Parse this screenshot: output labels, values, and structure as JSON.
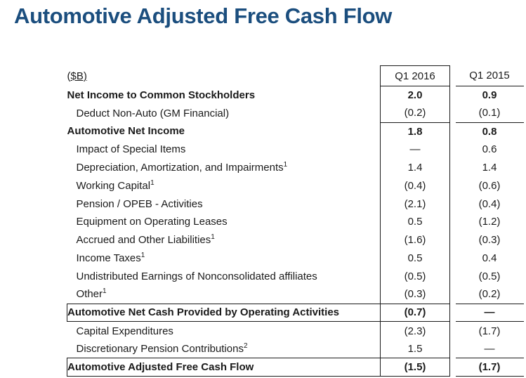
{
  "title": "Automotive Adjusted Free Cash Flow",
  "colors": {
    "title_blue": "#1B4E7E",
    "text": "#1a1a1a",
    "border": "#1a1a1a",
    "background": "#ffffff"
  },
  "chart_data": {
    "type": "table",
    "title": "Automotive Adjusted Free Cash Flow",
    "units": "($B)",
    "columns": [
      "Q1 2016",
      "Q1 2015"
    ],
    "rows": [
      {
        "label": "Net Income to Common Stockholders",
        "sup": "",
        "q1_2016": "2.0",
        "q1_2015": "0.9",
        "bold": true,
        "indent": false,
        "sep_below": false,
        "boxed": false
      },
      {
        "label": "Deduct Non-Auto (GM Financial)",
        "sup": "",
        "q1_2016": "(0.2)",
        "q1_2015": "(0.1)",
        "bold": false,
        "indent": true,
        "sep_below": true,
        "boxed": false
      },
      {
        "label": "Automotive Net Income",
        "sup": "",
        "q1_2016": "1.8",
        "q1_2015": "0.8",
        "bold": true,
        "indent": false,
        "sep_below": false,
        "boxed": false
      },
      {
        "label": "Impact of Special Items",
        "sup": "",
        "q1_2016": "—",
        "q1_2015": "0.6",
        "bold": false,
        "indent": true,
        "sep_below": false,
        "boxed": false
      },
      {
        "label": "Depreciation, Amortization, and Impairments",
        "sup": "1",
        "q1_2016": "1.4",
        "q1_2015": "1.4",
        "bold": false,
        "indent": true,
        "sep_below": false,
        "boxed": false
      },
      {
        "label": "Working Capital",
        "sup": "1",
        "q1_2016": "(0.4)",
        "q1_2015": "(0.6)",
        "bold": false,
        "indent": true,
        "sep_below": false,
        "boxed": false
      },
      {
        "label": "Pension / OPEB - Activities",
        "sup": "",
        "q1_2016": "(2.1)",
        "q1_2015": "(0.4)",
        "bold": false,
        "indent": true,
        "sep_below": false,
        "boxed": false
      },
      {
        "label": "Equipment on Operating Leases",
        "sup": "",
        "q1_2016": "0.5",
        "q1_2015": "(1.2)",
        "bold": false,
        "indent": true,
        "sep_below": false,
        "boxed": false
      },
      {
        "label": "Accrued and Other Liabilities",
        "sup": "1",
        "q1_2016": "(1.6)",
        "q1_2015": "(0.3)",
        "bold": false,
        "indent": true,
        "sep_below": false,
        "boxed": false
      },
      {
        "label": "Income Taxes",
        "sup": "1",
        "q1_2016": "0.5",
        "q1_2015": "0.4",
        "bold": false,
        "indent": true,
        "sep_below": false,
        "boxed": false
      },
      {
        "label": "Undistributed Earnings of Nonconsolidated affiliates",
        "sup": "",
        "q1_2016": "(0.5)",
        "q1_2015": "(0.5)",
        "bold": false,
        "indent": true,
        "sep_below": false,
        "boxed": false
      },
      {
        "label": "Other",
        "sup": "1",
        "q1_2016": "(0.3)",
        "q1_2015": "(0.2)",
        "bold": false,
        "indent": true,
        "sep_below": false,
        "boxed": false
      },
      {
        "label": "Automotive Net Cash Provided by Operating Activities",
        "sup": "",
        "q1_2016": "(0.7)",
        "q1_2015": "—",
        "bold": true,
        "indent": false,
        "sep_below": false,
        "boxed": true
      },
      {
        "label": "Capital Expenditures",
        "sup": "",
        "q1_2016": "(2.3)",
        "q1_2015": "(1.7)",
        "bold": false,
        "indent": true,
        "sep_below": false,
        "boxed": false
      },
      {
        "label": "Discretionary Pension Contributions",
        "sup": "2",
        "q1_2016": "1.5",
        "q1_2015": "—",
        "bold": false,
        "indent": true,
        "sep_below": false,
        "boxed": false
      },
      {
        "label": "Automotive Adjusted Free Cash Flow",
        "sup": "",
        "q1_2016": "(1.5)",
        "q1_2015": "(1.7)",
        "bold": true,
        "indent": false,
        "sep_below": false,
        "boxed": true
      }
    ]
  },
  "table": {
    "header": {
      "units_label": "($B)",
      "col_2016": "Q1 2016",
      "col_2015": "Q1 2015"
    }
  }
}
